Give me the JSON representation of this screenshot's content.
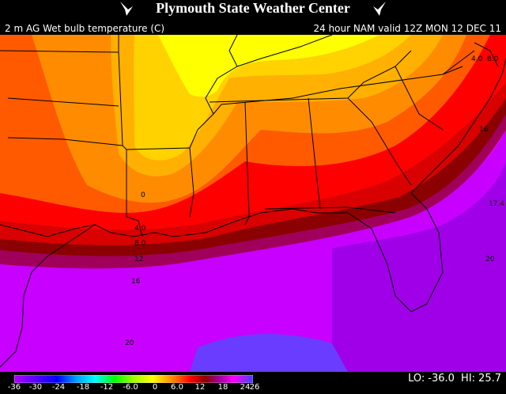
{
  "header": {
    "title": "Plymouth State Weather Center",
    "subtitle_left": "2 m AG Wet bulb temperature (C)",
    "subtitle_right": "24 hour NAM valid 12Z MON 12 DEC 11"
  },
  "map": {
    "contour_labels": [
      "0",
      "4.0",
      "8.0",
      "12",
      "16",
      "20",
      "4.0",
      "8.0",
      "16",
      "17.4",
      "20"
    ]
  },
  "colorbar": {
    "ticks": [
      "-36",
      "-30",
      "-24",
      "-18",
      "-12",
      "-6.0",
      "0",
      "6.0",
      "12",
      "18",
      "24",
      "26"
    ]
  },
  "stats": {
    "lo_label": "LO:",
    "lo_value": "-36.0",
    "hi_label": "HI:",
    "hi_value": "25.7"
  },
  "colors": {
    "yellow": "#ffff00",
    "orange": "#ff8c00",
    "red": "#ff0000",
    "darkred": "#8b0000",
    "purple": "#8b00c8",
    "magenta": "#ff00ff"
  }
}
